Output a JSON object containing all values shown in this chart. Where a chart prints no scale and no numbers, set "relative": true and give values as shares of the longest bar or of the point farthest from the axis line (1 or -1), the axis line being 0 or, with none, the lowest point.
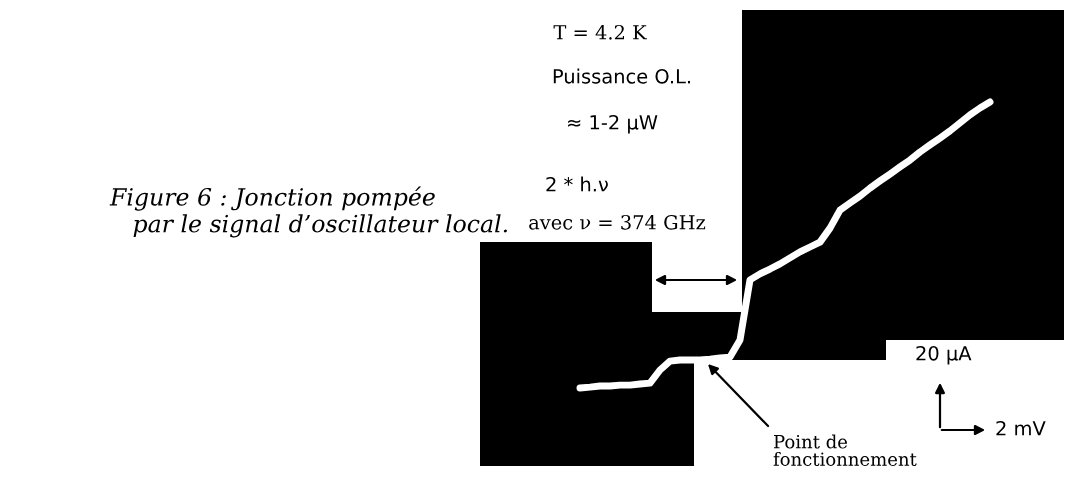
{
  "chart_data": {
    "type": "line",
    "relative": true,
    "title": "Figure 6 : Jonction pompée\n   par le signal d’oscillateur local.",
    "categories": [
      null,
      null,
      null,
      null,
      null,
      null,
      null,
      null,
      null,
      null,
      null,
      null,
      null,
      null,
      null,
      null,
      null,
      null,
      null,
      null,
      null,
      null,
      null,
      null,
      null,
      null,
      null,
      null,
      null,
      null,
      null,
      null,
      null,
      null,
      null,
      null,
      null,
      null,
      null,
      null,
      null,
      null
    ],
    "series": [
      {
        "color": "#ffffff",
        "values": [
          0,
          0.003,
          0.007,
          0.007,
          0.01,
          0.01,
          0.014,
          0.017,
          0.063,
          0.094,
          0.098,
          0.098,
          0.098,
          0.101,
          0.105,
          0.108,
          0.168,
          0.378,
          0.399,
          0.416,
          0.434,
          0.455,
          0.476,
          0.493,
          0.51,
          0.559,
          0.622,
          0.647,
          0.671,
          0.699,
          0.724,
          0.748,
          0.773,
          0.797,
          0.825,
          0.85,
          0.874,
          0.899,
          0.927,
          0.955,
          0.979,
          1
        ]
      }
    ],
    "annotations": [
      "T = 4.2 K",
      "Puissance O.L.",
      "≈ 1-2 µW",
      "2 * h.ν",
      "avec ν = 374 GHz",
      "20 µA",
      "2 mV",
      "Point de\nfonctionnement"
    ]
  }
}
